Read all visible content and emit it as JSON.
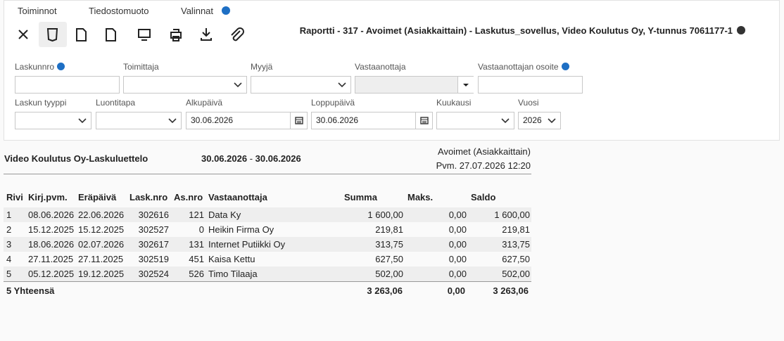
{
  "menu": [
    "Toiminnot",
    "Tiedostomuoto",
    "Valinnat"
  ],
  "report_title": "Raportti - 317 - Avoimet (Asiakkaittain) - Laskutus_sovellus, Video Koulutus Oy, Y-tunnus 7061177-1",
  "filters": [
    {
      "label": "Laskunnro",
      "info": true
    },
    {
      "label": "Toimittaja",
      "select": true
    },
    {
      "label": "Myyjä",
      "select": true
    },
    {
      "label": "Vastaanottaja",
      "disabled": true
    },
    {
      "label": "Vastaanottajan osoite",
      "info": true
    },
    {
      "label": "Laskun tyyppi",
      "select": true
    },
    {
      "label": "Luontitapa",
      "select": true
    },
    {
      "label": "Alkupäivä",
      "value": "30.06.2026",
      "date": true
    },
    {
      "label": "Loppupäivä",
      "value": "30.06.2026",
      "date": true
    },
    {
      "label": "Kuukausi",
      "select": true
    },
    {
      "label": "Vuosi",
      "value": "2026",
      "select": true
    }
  ],
  "report": {
    "name": "Video Koulutus Oy-Laskuluettelo",
    "date_from": "30.06.2026",
    "separator": "-",
    "date_to": "30.06.2026",
    "type": "Avoimet (Asiakkaittain)",
    "printed": "Pvm. 27.07.2026 12:20"
  },
  "table": {
    "columns": [
      "Rivi",
      "Kirj.pvm.",
      "Eräpäivä",
      "Lask.nro",
      "As.nro",
      "Vastaanottaja",
      "Summa",
      "Maks.",
      "Saldo"
    ],
    "rows": [
      [
        "1",
        "08.06.2026",
        "22.06.2026",
        "302616",
        "121",
        "Data Ky",
        "1 600,00",
        "0,00",
        "1 600,00"
      ],
      [
        "2",
        "15.12.2025",
        "15.12.2025",
        "302527",
        "0",
        "Heikin Firma Oy",
        "219,81",
        "0,00",
        "219,81"
      ],
      [
        "3",
        "18.06.2026",
        "02.07.2026",
        "302617",
        "131",
        "Internet Putiikki Oy",
        "313,75",
        "0,00",
        "313,75"
      ],
      [
        "4",
        "27.11.2025",
        "27.11.2025",
        "302519",
        "451",
        "Kaisa Kettu",
        "627,50",
        "0,00",
        "627,50"
      ],
      [
        "5",
        "05.12.2025",
        "19.12.2025",
        "302524",
        "526",
        "Timo Tilaaja",
        "502,00",
        "0,00",
        "502,00"
      ]
    ],
    "total": [
      "5 Yhteensä",
      "3 263,06",
      "0,00",
      "3 263,06"
    ]
  }
}
